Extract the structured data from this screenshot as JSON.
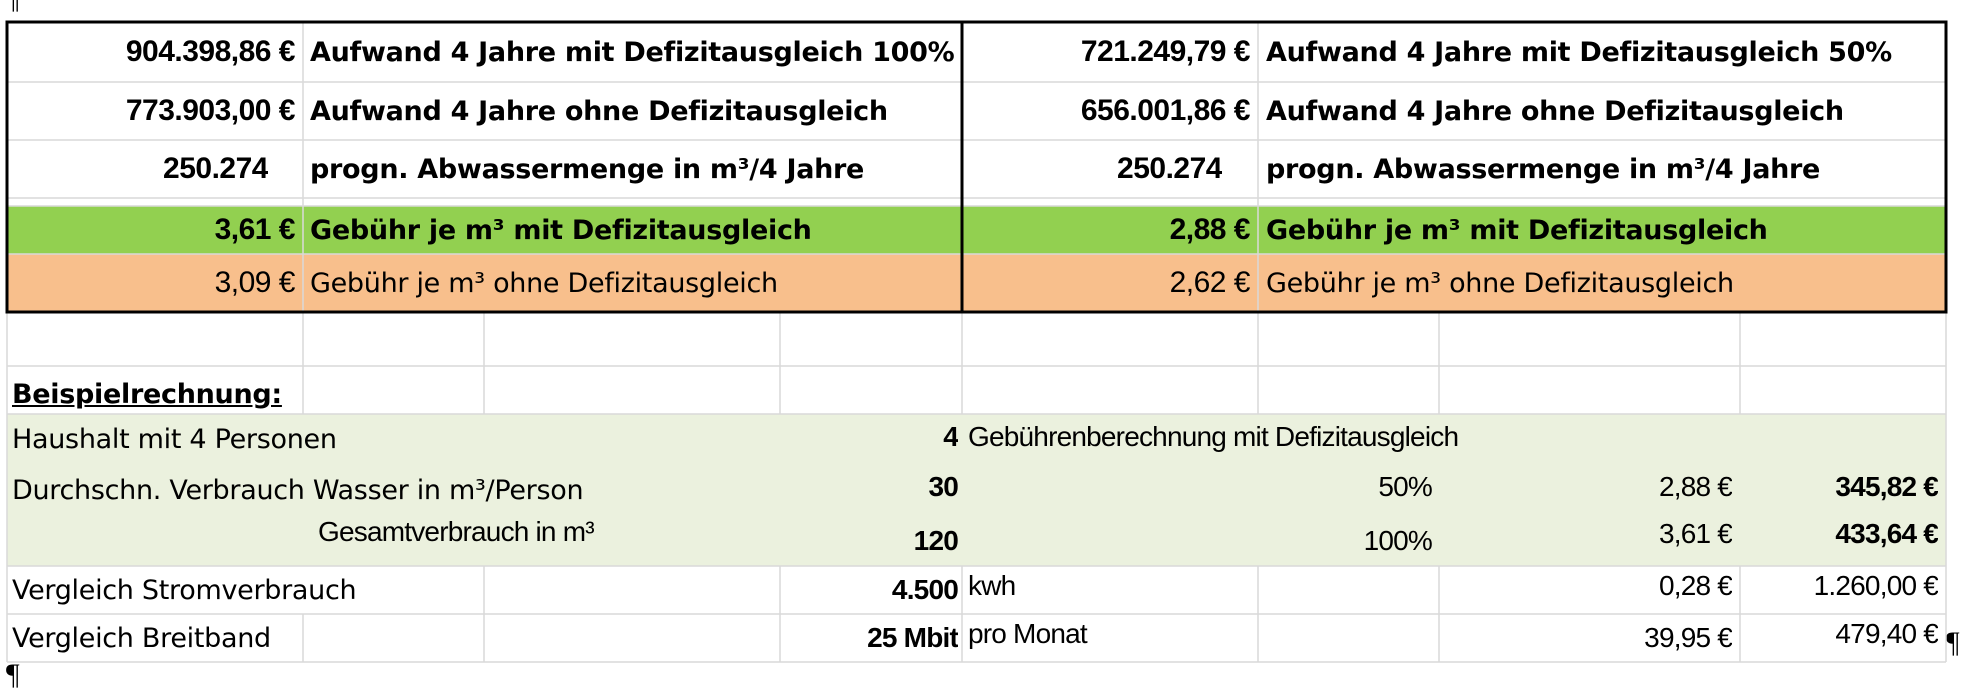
{
  "marks": {
    "pilcrow": "¶"
  },
  "summary": {
    "left": {
      "row1": {
        "value": "904.398,86 €",
        "label": "Aufwand 4 Jahre mit Defizitausgleich 100%"
      },
      "row2": {
        "value": "773.903,00 €",
        "label": "Aufwand 4 Jahre ohne Defizitausgleich"
      },
      "row3": {
        "value": "250.274",
        "label": "progn. Abwassermenge in m³/4 Jahre"
      },
      "row4": {
        "value": "3,61 €",
        "label": "Gebühr je m³ mit Defizitausgleich"
      },
      "row5": {
        "value": "3,09 €",
        "label": "Gebühr je m³ ohne Defizitausgleich"
      }
    },
    "right": {
      "row1": {
        "value": "721.249,79 €",
        "label": "Aufwand 4 Jahre mit Defizitausgleich 50%"
      },
      "row2": {
        "value": "656.001,86 €",
        "label": "Aufwand 4 Jahre ohne Defizitausgleich"
      },
      "row3": {
        "value": "250.274",
        "label": "progn. Abwassermenge in m³/4 Jahre"
      },
      "row4": {
        "value": "2,88 €",
        "label": "Gebühr je m³ mit Defizitausgleich"
      },
      "row5": {
        "value": "2,62 €",
        "label": "Gebühr je m³ ohne Defizitausgleich"
      }
    },
    "colors": {
      "green": "#92d050",
      "orange": "#f8bf8c"
    }
  },
  "example": {
    "heading": "Beispielrechnung:",
    "colors": {
      "band": "#ebf1de"
    },
    "household": {
      "label": "Haushalt mit 4 Personen",
      "value": "4",
      "note": "Gebührenberechnung mit Defizitausgleich"
    },
    "consumption": {
      "label": "Durchschn. Verbrauch Wasser in m³/Person",
      "value": "30",
      "pct": "50%",
      "rate": "2,88 €",
      "total": "345,82 €"
    },
    "total": {
      "label": "Gesamtverbrauch in m³",
      "value": "120",
      "pct": "100%",
      "rate": "3,61 €",
      "total": "433,64 €"
    },
    "power": {
      "label": "Vergleich Stromverbrauch",
      "value": "4.500",
      "unit": "kwh",
      "rate": "0,28 €",
      "total": "1.260,00 €"
    },
    "broadband": {
      "label": "Vergleich Breitband",
      "value": "25 Mbit",
      "unit": "pro Monat",
      "rate": "39,95 €",
      "total": "479,40 €"
    }
  }
}
